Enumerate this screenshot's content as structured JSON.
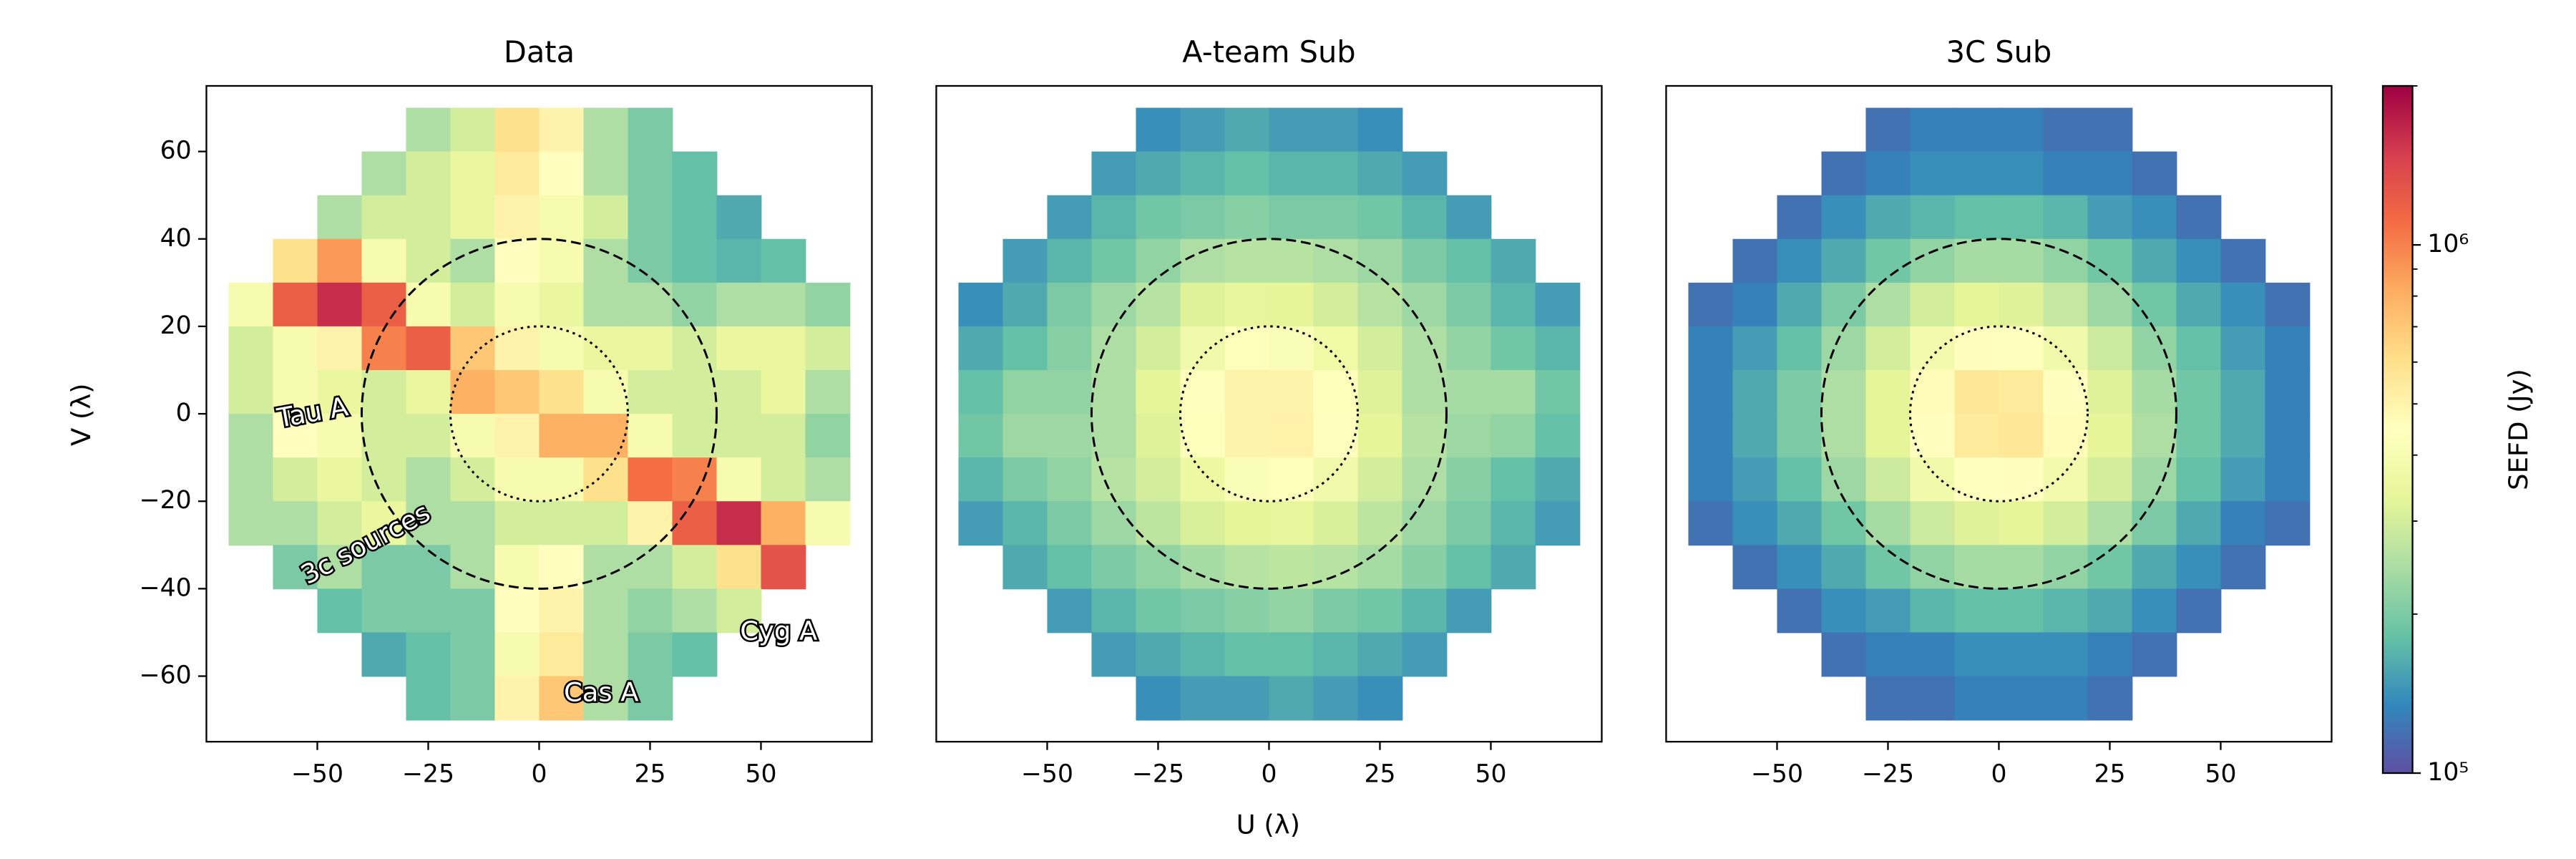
{
  "chart_data": {
    "type": "heatmap",
    "x": [
      -65,
      -55,
      -45,
      -35,
      -25,
      -15,
      -5,
      5,
      15,
      25,
      35,
      45,
      55,
      65
    ],
    "y": [
      65,
      55,
      45,
      35,
      25,
      15,
      5,
      -5,
      -15,
      -25,
      -35,
      -45,
      -55,
      -65
    ],
    "xlabel": "U (λ)",
    "ylabel": "V (λ)",
    "xlim": [
      -75,
      75
    ],
    "ylim": [
      -75,
      75
    ],
    "xticks": [
      {
        "value": -50,
        "label": "−50"
      },
      {
        "value": -25,
        "label": "−25"
      },
      0,
      25,
      50
    ],
    "yticks": [
      {
        "value": -60,
        "label": "−60"
      },
      {
        "value": -40,
        "label": "−40"
      },
      {
        "value": -20,
        "label": "−20"
      },
      0,
      20,
      40,
      60
    ],
    "circles": [
      {
        "r": 40,
        "style": "dashed"
      },
      {
        "r": 20,
        "style": "dotted"
      }
    ],
    "colorbar": {
      "label": "SEFD (Jy)",
      "scale": "log",
      "colormap": "Spectral_r",
      "lim": [
        100000,
        2000000
      ],
      "ticks": [
        {
          "value": 100000,
          "label": "10⁵"
        },
        {
          "value": 1000000,
          "label": "10⁶"
        }
      ],
      "minor_ticks": [
        200000,
        300000,
        400000,
        500000,
        600000,
        700000,
        800000,
        900000,
        2000000
      ]
    },
    "panels": [
      {
        "title": "Data",
        "annotations": [
          "Tau A",
          "3c sources",
          "Cyg A",
          "Cas A"
        ],
        "values": [
          [
            null,
            null,
            null,
            null,
            250000.0,
            300000.0,
            600000.0,
            500000.0,
            250000.0,
            200000.0,
            null,
            null,
            null,
            null
          ],
          [
            null,
            null,
            null,
            250000.0,
            300000.0,
            350000.0,
            550000.0,
            450000.0,
            250000.0,
            200000.0,
            180000.0,
            null,
            null,
            null
          ],
          [
            null,
            null,
            250000.0,
            300000.0,
            300000.0,
            350000.0,
            500000.0,
            400000.0,
            300000.0,
            200000.0,
            180000.0,
            160000.0,
            null,
            null
          ],
          [
            null,
            600000.0,
            900000.0,
            400000.0,
            300000.0,
            250000.0,
            450000.0,
            400000.0,
            250000.0,
            200000.0,
            180000.0,
            170000.0,
            180000.0,
            null
          ],
          [
            400000.0,
            1200000.0,
            1600000.0,
            1200000.0,
            400000.0,
            300000.0,
            400000.0,
            350000.0,
            250000.0,
            250000.0,
            220000.0,
            250000.0,
            250000.0,
            220000.0
          ],
          [
            300000.0,
            400000.0,
            500000.0,
            1000000.0,
            1200000.0,
            700000.0,
            500000.0,
            400000.0,
            350000.0,
            350000.0,
            300000.0,
            350000.0,
            350000.0,
            300000.0
          ],
          [
            300000.0,
            400000.0,
            350000.0,
            300000.0,
            350000.0,
            800000.0,
            700000.0,
            600000.0,
            400000.0,
            300000.0,
            300000.0,
            300000.0,
            350000.0,
            250000.0
          ],
          [
            250000.0,
            450000.0,
            400000.0,
            300000.0,
            300000.0,
            400000.0,
            500000.0,
            800000.0,
            800000.0,
            400000.0,
            300000.0,
            300000.0,
            300000.0,
            220000.0
          ],
          [
            250000.0,
            300000.0,
            350000.0,
            300000.0,
            250000.0,
            300000.0,
            400000.0,
            400000.0,
            600000.0,
            1100000.0,
            1000000.0,
            400000.0,
            300000.0,
            250000.0
          ],
          [
            250000.0,
            250000.0,
            300000.0,
            350000.0,
            250000.0,
            250000.0,
            300000.0,
            300000.0,
            300000.0,
            500000.0,
            1200000.0,
            1600000.0,
            800000.0,
            400000.0
          ],
          [
            null,
            200000.0,
            250000.0,
            200000.0,
            200000.0,
            250000.0,
            400000.0,
            450000.0,
            250000.0,
            250000.0,
            300000.0,
            600000.0,
            1300000.0,
            null
          ],
          [
            null,
            null,
            180000.0,
            200000.0,
            200000.0,
            200000.0,
            450000.0,
            500000.0,
            250000.0,
            220000.0,
            250000.0,
            300000.0,
            null,
            null
          ],
          [
            null,
            null,
            null,
            160000.0,
            180000.0,
            200000.0,
            400000.0,
            550000.0,
            250000.0,
            200000.0,
            180000.0,
            null,
            null,
            null
          ],
          [
            null,
            null,
            null,
            null,
            180000.0,
            200000.0,
            500000.0,
            700000.0,
            250000.0,
            200000.0,
            null,
            null,
            null,
            null
          ]
        ]
      },
      {
        "title": "A-team Sub",
        "values": [
          [
            null,
            null,
            null,
            null,
            140000.0,
            150000.0,
            160000.0,
            150000.0,
            150000.0,
            140000.0,
            null,
            null,
            null,
            null
          ],
          [
            null,
            null,
            null,
            150000.0,
            160000.0,
            170000.0,
            180000.0,
            170000.0,
            170000.0,
            160000.0,
            150000.0,
            null,
            null,
            null
          ],
          [
            null,
            null,
            150000.0,
            170000.0,
            190000.0,
            200000.0,
            210000.0,
            200000.0,
            200000.0,
            190000.0,
            170000.0,
            150000.0,
            null,
            null
          ],
          [
            null,
            150000.0,
            170000.0,
            190000.0,
            220000.0,
            250000.0,
            260000.0,
            260000.0,
            250000.0,
            230000.0,
            200000.0,
            180000.0,
            160000.0,
            null
          ],
          [
            140000.0,
            160000.0,
            200000.0,
            230000.0,
            260000.0,
            320000.0,
            340000.0,
            330000.0,
            300000.0,
            260000.0,
            230000.0,
            200000.0,
            170000.0,
            150000.0
          ],
          [
            160000.0,
            180000.0,
            210000.0,
            250000.0,
            300000.0,
            380000.0,
            430000.0,
            420000.0,
            370000.0,
            300000.0,
            250000.0,
            220000.0,
            190000.0,
            170000.0
          ],
          [
            180000.0,
            220000.0,
            220000.0,
            250000.0,
            330000.0,
            440000.0,
            500000.0,
            500000.0,
            430000.0,
            320000.0,
            250000.0,
            240000.0,
            240000.0,
            190000.0
          ],
          [
            190000.0,
            230000.0,
            230000.0,
            250000.0,
            320000.0,
            430000.0,
            500000.0,
            510000.0,
            440000.0,
            330000.0,
            260000.0,
            230000.0,
            220000.0,
            180000.0
          ],
          [
            170000.0,
            200000.0,
            220000.0,
            260000.0,
            300000.0,
            360000.0,
            420000.0,
            430000.0,
            380000.0,
            300000.0,
            250000.0,
            210000.0,
            180000.0,
            160000.0
          ],
          [
            150000.0,
            170000.0,
            200000.0,
            230000.0,
            270000.0,
            310000.0,
            330000.0,
            340000.0,
            310000.0,
            270000.0,
            230000.0,
            200000.0,
            170000.0,
            150000.0
          ],
          [
            null,
            160000.0,
            180000.0,
            200000.0,
            220000.0,
            240000.0,
            260000.0,
            270000.0,
            260000.0,
            240000.0,
            210000.0,
            180000.0,
            160000.0,
            null
          ],
          [
            null,
            null,
            150000.0,
            170000.0,
            190000.0,
            200000.0,
            210000.0,
            220000.0,
            200000.0,
            190000.0,
            170000.0,
            150000.0,
            null,
            null
          ],
          [
            null,
            null,
            null,
            150000.0,
            160000.0,
            170000.0,
            180000.0,
            180000.0,
            170000.0,
            160000.0,
            150000.0,
            null,
            null,
            null
          ],
          [
            null,
            null,
            null,
            null,
            140000.0,
            150000.0,
            150000.0,
            160000.0,
            150000.0,
            140000.0,
            null,
            null,
            null,
            null
          ]
        ]
      },
      {
        "title": "3C Sub",
        "values": [
          [
            null,
            null,
            null,
            null,
            120000.0,
            130000.0,
            130000.0,
            130000.0,
            120000.0,
            120000.0,
            null,
            null,
            null,
            null
          ],
          [
            null,
            null,
            null,
            120000.0,
            130000.0,
            140000.0,
            140000.0,
            140000.0,
            130000.0,
            130000.0,
            120000.0,
            null,
            null,
            null
          ],
          [
            null,
            null,
            120000.0,
            140000.0,
            160000.0,
            170000.0,
            180000.0,
            180000.0,
            170000.0,
            150000.0,
            140000.0,
            120000.0,
            null,
            null
          ],
          [
            null,
            120000.0,
            140000.0,
            160000.0,
            190000.0,
            220000.0,
            240000.0,
            240000.0,
            220000.0,
            190000.0,
            160000.0,
            140000.0,
            120000.0,
            null
          ],
          [
            120000.0,
            130000.0,
            160000.0,
            200000.0,
            250000.0,
            300000.0,
            330000.0,
            320000.0,
            280000.0,
            230000.0,
            190000.0,
            160000.0,
            140000.0,
            120000.0
          ],
          [
            130000.0,
            150000.0,
            180000.0,
            230000.0,
            300000.0,
            390000.0,
            450000.0,
            440000.0,
            380000.0,
            290000.0,
            220000.0,
            180000.0,
            150000.0,
            130000.0
          ],
          [
            130000.0,
            160000.0,
            200000.0,
            250000.0,
            330000.0,
            460000.0,
            560000.0,
            550000.0,
            450000.0,
            320000.0,
            240000.0,
            190000.0,
            160000.0,
            130000.0
          ],
          [
            130000.0,
            160000.0,
            200000.0,
            250000.0,
            330000.0,
            450000.0,
            550000.0,
            560000.0,
            460000.0,
            330000.0,
            250000.0,
            190000.0,
            160000.0,
            130000.0
          ],
          [
            130000.0,
            150000.0,
            180000.0,
            230000.0,
            290000.0,
            380000.0,
            440000.0,
            450000.0,
            390000.0,
            300000.0,
            230000.0,
            180000.0,
            150000.0,
            130000.0
          ],
          [
            120000.0,
            140000.0,
            160000.0,
            190000.0,
            240000.0,
            290000.0,
            320000.0,
            330000.0,
            300000.0,
            250000.0,
            200000.0,
            160000.0,
            130000.0,
            120000.0
          ],
          [
            null,
            120000.0,
            140000.0,
            160000.0,
            190000.0,
            220000.0,
            240000.0,
            240000.0,
            220000.0,
            190000.0,
            160000.0,
            140000.0,
            120000.0,
            null
          ],
          [
            null,
            null,
            120000.0,
            140000.0,
            150000.0,
            170000.0,
            180000.0,
            180000.0,
            170000.0,
            160000.0,
            140000.0,
            120000.0,
            null,
            null
          ],
          [
            null,
            null,
            null,
            120000.0,
            130000.0,
            130000.0,
            140000.0,
            140000.0,
            140000.0,
            130000.0,
            120000.0,
            null,
            null,
            null
          ],
          [
            null,
            null,
            null,
            null,
            120000.0,
            120000.0,
            130000.0,
            130000.0,
            130000.0,
            120000.0,
            null,
            null,
            null,
            null
          ]
        ]
      }
    ]
  }
}
